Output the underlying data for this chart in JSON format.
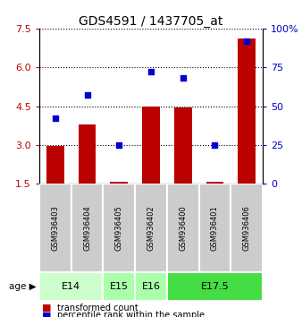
{
  "title": "GDS4591 / 1437705_at",
  "samples": [
    "GSM936403",
    "GSM936404",
    "GSM936405",
    "GSM936402",
    "GSM936400",
    "GSM936401",
    "GSM936406"
  ],
  "bar_values": [
    2.95,
    3.8,
    1.57,
    4.5,
    4.45,
    1.57,
    7.1
  ],
  "bar_bottom": 1.5,
  "bar_color": "#bb0000",
  "percentile_values": [
    42,
    57,
    25,
    72,
    68,
    25,
    92
  ],
  "percentile_color": "#0000cc",
  "yleft_min": 1.5,
  "yleft_max": 7.5,
  "yleft_ticks": [
    1.5,
    3.0,
    4.5,
    6.0,
    7.5
  ],
  "yright_min": 0,
  "yright_max": 100,
  "yright_ticks": [
    0,
    25,
    50,
    75,
    100
  ],
  "yright_labels": [
    "0",
    "25",
    "50",
    "75",
    "100%"
  ],
  "age_group_data": [
    {
      "label": "E14",
      "start": 0,
      "end": 1,
      "color": "#ccffcc"
    },
    {
      "label": "E15",
      "start": 2,
      "end": 2,
      "color": "#aaffaa"
    },
    {
      "label": "E16",
      "start": 3,
      "end": 3,
      "color": "#aaffaa"
    },
    {
      "label": "E17.5",
      "start": 4,
      "end": 6,
      "color": "#44dd44"
    }
  ],
  "legend_items": [
    {
      "label": "transformed count",
      "color": "#bb0000"
    },
    {
      "label": "percentile rank within the sample",
      "color": "#0000cc"
    }
  ],
  "sample_box_color": "#cccccc",
  "title_fontsize": 10,
  "tick_fontsize": 8,
  "sample_fontsize": 6,
  "age_fontsize": 8,
  "legend_fontsize": 7
}
